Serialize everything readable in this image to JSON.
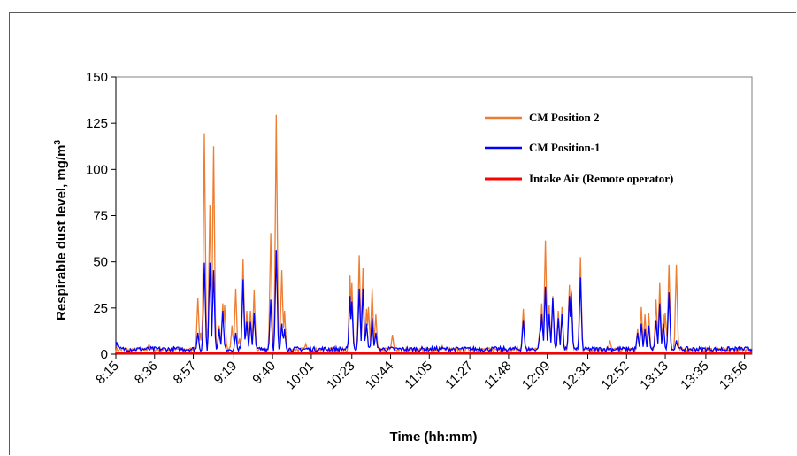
{
  "chart_data": {
    "type": "line",
    "xlabel": "Time (hh:mm)",
    "ylabel": "Respirable dust level, mg/m",
    "ylabel_superscript": "3",
    "ylim": [
      0,
      150
    ],
    "yticks": [
      0,
      25,
      50,
      75,
      100,
      125,
      150
    ],
    "xticks": [
      "8:15",
      "8:36",
      "8:57",
      "9:19",
      "9:40",
      "10:01",
      "10:23",
      "10:44",
      "11:05",
      "11:27",
      "11:48",
      "12:09",
      "12:31",
      "12:52",
      "13:13",
      "13:35",
      "13:56"
    ],
    "xrange_minutes": [
      495,
      840
    ],
    "grid": false,
    "legend_position": "top-right",
    "colors": {
      "pos2": "#ED7D31",
      "pos1": "#0000FF",
      "intake": "#FF0000"
    },
    "series": [
      {
        "name": "CM Position 2",
        "color": "#ED7D31",
        "peaks": [
          {
            "t": 513,
            "v": 4
          },
          {
            "t": 538,
            "v": 3
          },
          {
            "t": 539.5,
            "v": 29
          },
          {
            "t": 541,
            "v": 10
          },
          {
            "t": 543,
            "v": 118
          },
          {
            "t": 546,
            "v": 79
          },
          {
            "t": 548,
            "v": 111
          },
          {
            "t": 551,
            "v": 14
          },
          {
            "t": 553,
            "v": 26
          },
          {
            "t": 554,
            "v": 25
          },
          {
            "t": 558,
            "v": 14
          },
          {
            "t": 560,
            "v": 34
          },
          {
            "t": 562,
            "v": 7
          },
          {
            "t": 564,
            "v": 50
          },
          {
            "t": 566,
            "v": 22
          },
          {
            "t": 568,
            "v": 22
          },
          {
            "t": 570,
            "v": 33
          },
          {
            "t": 579,
            "v": 64
          },
          {
            "t": 582,
            "v": 128
          },
          {
            "t": 585,
            "v": 44
          },
          {
            "t": 586.5,
            "v": 22
          },
          {
            "t": 598,
            "v": 4
          },
          {
            "t": 622,
            "v": 41
          },
          {
            "t": 623,
            "v": 37
          },
          {
            "t": 627,
            "v": 52
          },
          {
            "t": 629,
            "v": 45
          },
          {
            "t": 631,
            "v": 23
          },
          {
            "t": 632,
            "v": 24
          },
          {
            "t": 634,
            "v": 34
          },
          {
            "t": 636,
            "v": 20
          },
          {
            "t": 645,
            "v": 9
          },
          {
            "t": 672,
            "v": 3
          },
          {
            "t": 716,
            "v": 23
          },
          {
            "t": 725,
            "v": 12
          },
          {
            "t": 726,
            "v": 26
          },
          {
            "t": 728,
            "v": 60
          },
          {
            "t": 730,
            "v": 25
          },
          {
            "t": 732,
            "v": 30
          },
          {
            "t": 735,
            "v": 22
          },
          {
            "t": 737,
            "v": 24
          },
          {
            "t": 741,
            "v": 36
          },
          {
            "t": 742,
            "v": 33
          },
          {
            "t": 747,
            "v": 51
          },
          {
            "t": 763,
            "v": 6
          },
          {
            "t": 778,
            "v": 12
          },
          {
            "t": 780,
            "v": 24
          },
          {
            "t": 782,
            "v": 20
          },
          {
            "t": 784,
            "v": 21
          },
          {
            "t": 788,
            "v": 28
          },
          {
            "t": 790,
            "v": 37
          },
          {
            "t": 792,
            "v": 20
          },
          {
            "t": 793,
            "v": 21
          },
          {
            "t": 795,
            "v": 47
          },
          {
            "t": 799,
            "v": 47
          }
        ]
      },
      {
        "name": "CM Position-1",
        "color": "#0000FF",
        "peaks": [
          {
            "t": 495.5,
            "v": 5
          },
          {
            "t": 539.5,
            "v": 10
          },
          {
            "t": 543,
            "v": 48
          },
          {
            "t": 546,
            "v": 48
          },
          {
            "t": 548,
            "v": 44
          },
          {
            "t": 551,
            "v": 12
          },
          {
            "t": 553,
            "v": 22
          },
          {
            "t": 560,
            "v": 10
          },
          {
            "t": 564,
            "v": 39
          },
          {
            "t": 566,
            "v": 16
          },
          {
            "t": 568,
            "v": 16
          },
          {
            "t": 570,
            "v": 21
          },
          {
            "t": 579,
            "v": 28
          },
          {
            "t": 582,
            "v": 55
          },
          {
            "t": 585,
            "v": 15
          },
          {
            "t": 586.5,
            "v": 12
          },
          {
            "t": 622,
            "v": 30
          },
          {
            "t": 623,
            "v": 27
          },
          {
            "t": 627,
            "v": 34
          },
          {
            "t": 629,
            "v": 34
          },
          {
            "t": 631,
            "v": 15
          },
          {
            "t": 634,
            "v": 18
          },
          {
            "t": 636,
            "v": 10
          },
          {
            "t": 716,
            "v": 17
          },
          {
            "t": 725,
            "v": 10
          },
          {
            "t": 726,
            "v": 20
          },
          {
            "t": 728,
            "v": 35
          },
          {
            "t": 730,
            "v": 20
          },
          {
            "t": 732,
            "v": 29
          },
          {
            "t": 735,
            "v": 18
          },
          {
            "t": 737,
            "v": 20
          },
          {
            "t": 741,
            "v": 30
          },
          {
            "t": 742,
            "v": 32
          },
          {
            "t": 747,
            "v": 40
          },
          {
            "t": 778,
            "v": 10
          },
          {
            "t": 780,
            "v": 15
          },
          {
            "t": 782,
            "v": 12
          },
          {
            "t": 784,
            "v": 14
          },
          {
            "t": 788,
            "v": 17
          },
          {
            "t": 790,
            "v": 26
          },
          {
            "t": 792,
            "v": 15
          },
          {
            "t": 795,
            "v": 32
          },
          {
            "t": 799,
            "v": 6
          }
        ]
      },
      {
        "name": "Intake Air (Remote operator)",
        "color": "#FF0000",
        "values_constant": 0.5
      }
    ]
  }
}
